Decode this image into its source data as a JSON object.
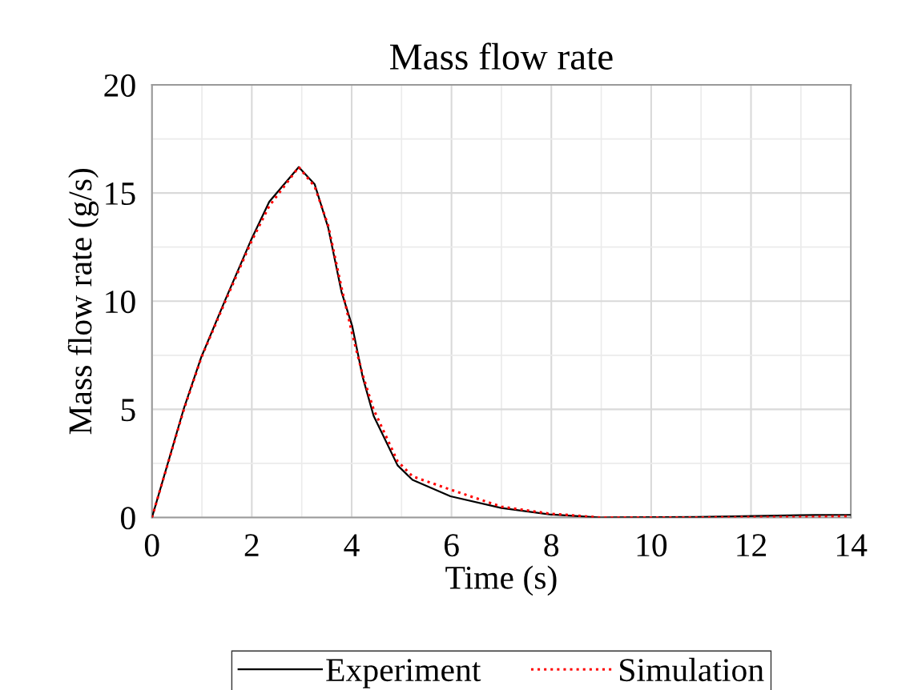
{
  "chart_data": {
    "type": "line",
    "title": "Mass flow rate",
    "xlabel": "Time (s)",
    "ylabel": "Mass flow rate (g/s)",
    "x": [
      0,
      0.64,
      0.99,
      1.47,
      1.98,
      2.35,
      2.94,
      3.26,
      3.53,
      3.8,
      4.01,
      4.22,
      4.44,
      4.92,
      5.22,
      5.98,
      7.0,
      7.96,
      9.0,
      10.9,
      12.97,
      14
    ],
    "series": [
      {
        "name": "Experiment",
        "color": "#000000",
        "line_style": "solid",
        "values": [
          0,
          5.05,
          7.43,
          10.07,
          12.8,
          14.6,
          16.2,
          15.4,
          13.4,
          10.4,
          8.86,
          6.5,
          4.7,
          2.41,
          1.74,
          0.98,
          0.44,
          0.14,
          0,
          0.02,
          0.11,
          0.12
        ]
      },
      {
        "name": "Simulation",
        "color": "#ff0000",
        "line_style": "dotted",
        "values": [
          0,
          5.0,
          7.4,
          10.0,
          12.7,
          14.4,
          16.2,
          15.3,
          13.5,
          10.6,
          8.5,
          6.6,
          5.0,
          2.6,
          1.9,
          1.29,
          0.5,
          0.18,
          0,
          0,
          0.03,
          0.06
        ]
      }
    ],
    "xlim": [
      0,
      14
    ],
    "xticks": [
      0,
      2,
      4,
      6,
      8,
      10,
      12,
      14
    ],
    "ylim": [
      0,
      20
    ],
    "yticks": [
      0,
      5,
      10,
      15,
      20
    ],
    "grid": true,
    "legend": "bottom",
    "marker": "none"
  }
}
